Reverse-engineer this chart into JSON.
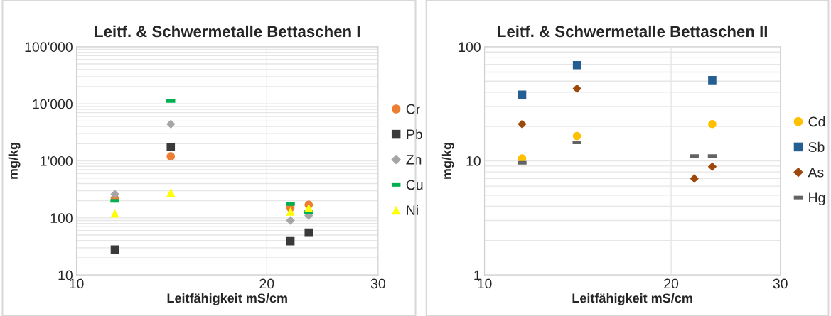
{
  "chart_data": [
    {
      "type": "scatter",
      "title": "Leitf. & Schwermetalle Bettaschen I",
      "xlabel": "Leitfähigkeit mS/cm",
      "ylabel": "mg/kg",
      "log": "xy",
      "xlim": [
        10,
        30
      ],
      "xticks": [
        10,
        20,
        30
      ],
      "ylim": [
        10,
        100000
      ],
      "yticks": [
        10,
        100,
        {
          "value": 1000,
          "label": "1'000"
        },
        {
          "value": 10000,
          "label": "10'000"
        },
        {
          "value": 100000,
          "label": "100'000"
        }
      ],
      "grid": true,
      "legend": "right",
      "series": [
        {
          "name": "Cr",
          "color": "#ed7d31",
          "marker": "circle",
          "x": [
            11.5,
            14.1,
            21.8,
            23.3
          ],
          "values": [
            220,
            1200,
            150,
            170
          ]
        },
        {
          "name": "Pb",
          "color": "#3a3a3a",
          "marker": "square",
          "x": [
            11.5,
            14.1,
            21.8,
            23.3
          ],
          "values": [
            28,
            1750,
            39,
            55
          ]
        },
        {
          "name": "Zn",
          "color": "#a5a5a5",
          "marker": "diamond",
          "x": [
            11.5,
            14.1,
            21.8,
            23.3
          ],
          "values": [
            260,
            4400,
            90,
            110
          ]
        },
        {
          "name": "Cu",
          "color": "#00b050",
          "x": [
            11.5,
            14.1,
            21.8,
            23.3
          ],
          "values": [
            200,
            11200,
            175,
            126
          ]
        },
        {
          "name": "Ni",
          "color": "#ffff00",
          "marker": "triangle",
          "x": [
            11.5,
            14.1,
            21.8,
            23.3
          ],
          "values": [
            120,
            280,
            130,
            150
          ]
        }
      ]
    },
    {
      "type": "scatter",
      "title": "Leitf. & Schwermetalle Bettaschen II",
      "xlabel": "Leitfähigkeit mS/cm",
      "ylabel": "mg/kg",
      "log": "xy",
      "xlim": [
        10,
        30
      ],
      "xticks": [
        10,
        20,
        30
      ],
      "ylim": [
        1,
        100
      ],
      "yticks": [
        1,
        10,
        100
      ],
      "grid": true,
      "legend": "right",
      "series": [
        {
          "name": "Cd",
          "color": "#ffc000",
          "marker": "circle",
          "x": [
            11.5,
            14.1,
            23.3
          ],
          "values": [
            10.5,
            16.5,
            21
          ]
        },
        {
          "name": "Sb",
          "color": "#255e91",
          "marker": "square",
          "x": [
            11.5,
            14.1,
            23.3
          ],
          "values": [
            38,
            69,
            51
          ]
        },
        {
          "name": "As",
          "color": "#9e480e",
          "marker": "diamond",
          "x": [
            11.5,
            14.1,
            21.8,
            23.3
          ],
          "values": [
            21,
            43,
            7,
            8.9
          ]
        },
        {
          "name": "Hg",
          "color": "#636363",
          "x": [
            11.5,
            14.1,
            21.8,
            23.3
          ],
          "values": [
            9.6,
            14.5,
            11,
            11
          ]
        }
      ]
    }
  ]
}
